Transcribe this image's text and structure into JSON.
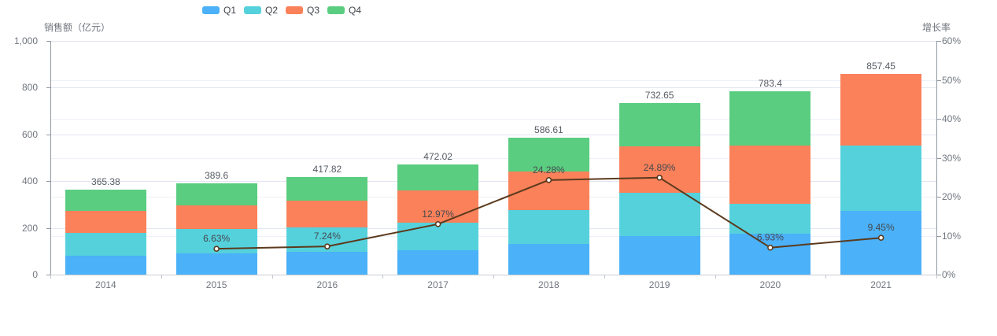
{
  "chart_data": {
    "type": "bar",
    "subtype": "stacked-bar-with-line",
    "title": "",
    "categories": [
      "2014",
      "2015",
      "2016",
      "2017",
      "2018",
      "2019",
      "2020",
      "2021"
    ],
    "series": [
      {
        "name": "Q1",
        "type": "bar",
        "stack": "total",
        "color": "#4BB1F8",
        "values": [
          82,
          90,
          98,
          105,
          133,
          165,
          174,
          274
        ]
      },
      {
        "name": "Q2",
        "type": "bar",
        "stack": "total",
        "color": "#55D1DC",
        "values": [
          95,
          105,
          103,
          118,
          143,
          184,
          130,
          278
        ]
      },
      {
        "name": "Q3",
        "type": "bar",
        "stack": "total",
        "color": "#FA815A",
        "values": [
          95,
          101,
          115,
          136,
          164,
          200,
          248,
          305
        ]
      },
      {
        "name": "Q4",
        "type": "bar",
        "stack": "total",
        "color": "#5ACD80",
        "values": [
          93,
          94,
          102,
          113,
          147,
          184,
          231,
          0
        ]
      },
      {
        "name": "增长率",
        "type": "line",
        "axis": "right",
        "color": "#5B3A1D",
        "values": [
          null,
          6.63,
          7.24,
          12.97,
          24.28,
          24.89,
          6.93,
          9.45
        ],
        "point_labels": [
          "",
          "6.63%",
          "7.24%",
          "12.97%",
          "24.28%",
          "24.89%",
          "6.93%",
          "9.45%"
        ]
      }
    ],
    "totals_labels": [
      "365.38",
      "389.6",
      "417.82",
      "472.02",
      "586.61",
      "732.65",
      "783.4",
      "857.45"
    ],
    "left_axis": {
      "name": "销售额（亿元）",
      "min": 0,
      "max": 1000,
      "tick_values": [
        0,
        200,
        400,
        600,
        800,
        1000
      ],
      "tick_labels": [
        "0",
        "200",
        "400",
        "600",
        "800",
        "1,000"
      ]
    },
    "right_axis": {
      "name": "增长率",
      "min": 0,
      "max": 60,
      "tick_values": [
        0,
        10,
        20,
        30,
        40,
        50,
        60
      ],
      "tick_labels": [
        "0%",
        "10%",
        "20%",
        "30%",
        "40%",
        "50%",
        "60%"
      ]
    },
    "legend": {
      "labels": [
        "Q1",
        "Q2",
        "Q3",
        "Q4"
      ],
      "position": "top-left"
    },
    "grid": true,
    "colors": {
      "q1": "#4BB1F8",
      "q2": "#55D1DC",
      "q3": "#FA815A",
      "q4": "#5ACD80",
      "line": "#5B3A1D",
      "grid_major": "#E2E6F0",
      "grid_minor": "#EEF1F7",
      "axis_line": "#9097A0",
      "x_axis_line": "#C9CDD4",
      "tick_text": "#70757E"
    }
  }
}
